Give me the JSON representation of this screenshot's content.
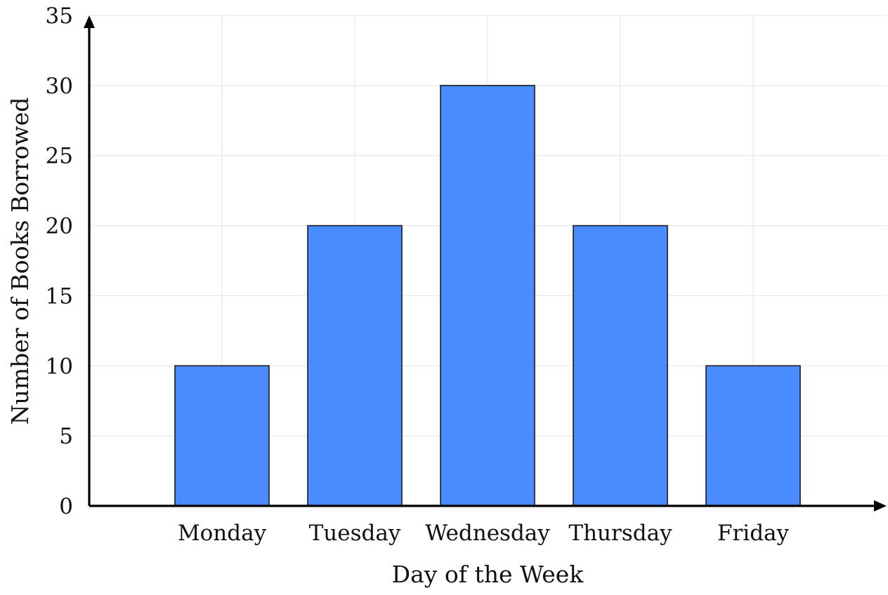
{
  "chart_data": {
    "type": "bar",
    "title": "",
    "categories": [
      "Monday",
      "Tuesday",
      "Wednesday",
      "Thursday",
      "Friday"
    ],
    "values": [
      10,
      20,
      30,
      20,
      10
    ],
    "xlabel": "Day of the Week",
    "ylabel": "Number of Books Borrowed",
    "ylim": [
      0,
      35
    ],
    "yticks": [
      0,
      5,
      10,
      15,
      20,
      25,
      30,
      35
    ],
    "grid": true,
    "legend": "none",
    "bar_color": "#4a8cff",
    "bar_edge_color": "#1a1a1a"
  }
}
